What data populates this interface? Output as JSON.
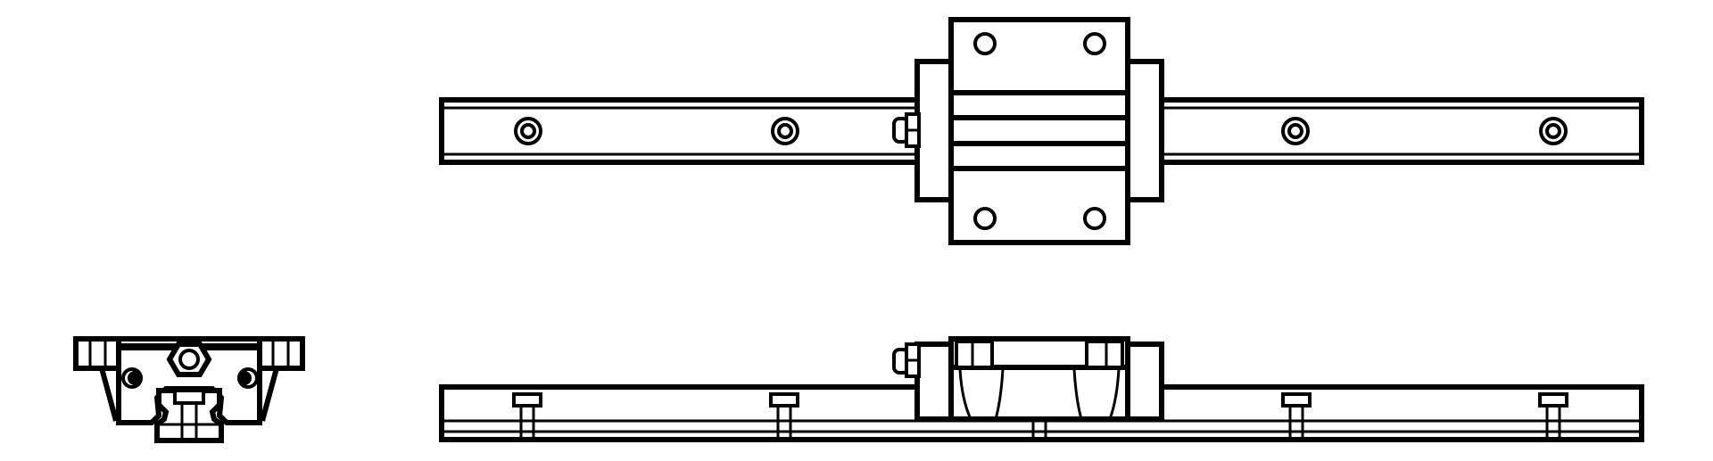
{
  "drawing": {
    "type": "technical-line-drawing",
    "views": [
      "top-view",
      "front-view",
      "end-view"
    ],
    "line_color": "#000000",
    "background": "#ffffff",
    "rail_mount_holes_per_view": 4,
    "carriage_top_holes": 4
  }
}
